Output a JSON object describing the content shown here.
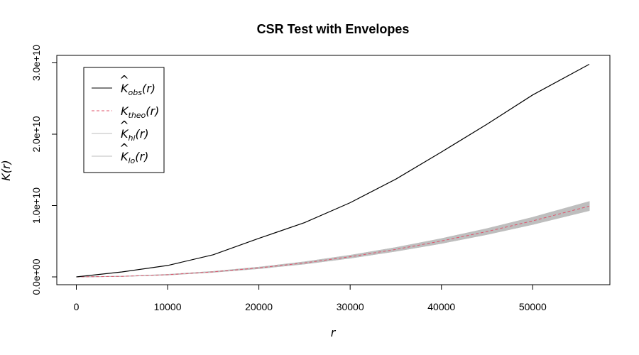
{
  "chart_data": {
    "type": "line",
    "title": "CSR Test with Envelopes",
    "xlabel": "r",
    "ylabel": "K(r)",
    "xlim": [
      0,
      56200
    ],
    "ylim": [
      0,
      30000000000
    ],
    "x_ticks": [
      0,
      10000,
      20000,
      30000,
      40000,
      50000
    ],
    "x_tick_labels": [
      "0",
      "10000",
      "20000",
      "30000",
      "40000",
      "50000"
    ],
    "y_ticks": [
      0,
      10000000000,
      20000000000,
      30000000000
    ],
    "y_tick_labels": [
      "0.0e+00",
      "1.0e+10",
      "2.0e+10",
      "3.0e+10"
    ],
    "grid": false,
    "legend_position": "top-left",
    "x": [
      0,
      5000,
      10000,
      15000,
      20000,
      25000,
      30000,
      35000,
      40000,
      45000,
      50000,
      56200
    ],
    "series": [
      {
        "name": "K_obs(r)",
        "label_main": "K",
        "label_sub": "obs",
        "label_tail": "(r)",
        "hat": true,
        "color": "#000000",
        "dash": "solid",
        "values": [
          0,
          700000000,
          1600000000,
          3100000000,
          5400000000,
          7600000000,
          10400000000,
          13700000000,
          17500000000,
          21400000000,
          25500000000,
          29800000000
        ]
      },
      {
        "name": "K_theo(r)",
        "label_main": "K",
        "label_sub": "theo",
        "label_tail": "(r)",
        "hat": false,
        "color": "#DF536B",
        "dash": "dashed",
        "values": [
          0,
          80000000,
          310000000,
          710000000,
          1260000000,
          1960000000,
          2830000000,
          3850000000,
          5030000000,
          6360000000,
          7850000000,
          9920000000
        ]
      },
      {
        "name": "K_hi(r)",
        "label_main": "K",
        "label_sub": "hi",
        "label_tail": "(r)",
        "hat": true,
        "color": "#BEBEBE",
        "dash": "solid",
        "values": [
          0,
          90000000,
          340000000,
          760000000,
          1350000000,
          2100000000,
          3020000000,
          4100000000,
          5350000000,
          6760000000,
          8340000000,
          10550000000
        ]
      },
      {
        "name": "K_lo(r)",
        "label_main": "K",
        "label_sub": "lo",
        "label_tail": "(r)",
        "hat": true,
        "color": "#BEBEBE",
        "dash": "solid",
        "values": [
          0,
          70000000,
          280000000,
          660000000,
          1170000000,
          1820000000,
          2640000000,
          3600000000,
          4710000000,
          5960000000,
          7360000000,
          9300000000
        ]
      }
    ]
  }
}
